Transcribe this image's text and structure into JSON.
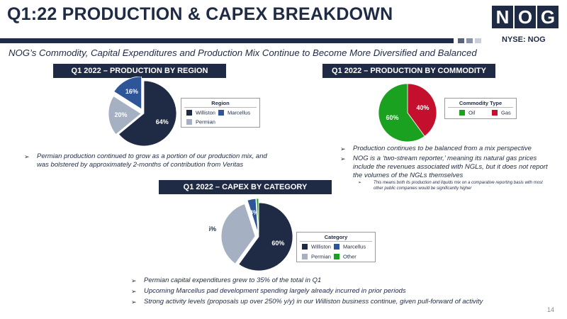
{
  "title": "Q1:22 PRODUCTION & CAPEX BREAKDOWN",
  "logo_text": "NOG",
  "ticker": "NYSE: NOG",
  "subtitle": "NOG’s Commodity, Capital Expenditures and Production Mix Continue to Become More Diversified and Balanced",
  "page_number": "14",
  "colors": {
    "navy": "#1f2a44",
    "steel": "#2e5597",
    "gray": "#a5b0c3",
    "green": "#1aa11f",
    "red": "#c4102e"
  },
  "region_bullet": "Permian production continued to grow as a portion of our production mix, and was bolstered by approximately 2-months of contribution from Veritas",
  "commodity_bullets": [
    "Production continues to be balanced from a mix perspective",
    "NOG is a ‘two-stream reporter,’ meaning its natural gas prices include the revenues associated with NGLs, but it does not report the volumes of the NGLs themselves"
  ],
  "commodity_subbullet": "This means both its production and liquids mix on a comparative reporting basis with most other public companies would be significantly higher",
  "capex_bullets": [
    "Permian capital expenditures grew to 35% of the total in Q1",
    "Upcoming Marcellus pad development spending largely already incurred in prior periods",
    "Strong activity levels (proposals up over 250% y/y) in our Williston business continue, given pull-forward of activity"
  ],
  "chart_data": [
    {
      "type": "pie",
      "title": "Q1 2022 – PRODUCTION BY REGION",
      "legend_title": "Region",
      "legend_position": "right",
      "categories": [
        "Williston",
        "Marcellus",
        "Permian"
      ],
      "values": [
        64,
        16,
        20
      ],
      "labels": [
        "64%",
        "16%",
        "20%"
      ],
      "colors": [
        "#1f2a44",
        "#2e5597",
        "#a5b0c3"
      ]
    },
    {
      "type": "pie",
      "title": "Q1 2022 – PRODUCTION BY COMMODITY",
      "legend_title": "Commodity Type",
      "legend_position": "right",
      "categories": [
        "Oil",
        "Gas"
      ],
      "values": [
        60,
        40
      ],
      "labels": [
        "60%",
        "40%"
      ],
      "colors": [
        "#1aa11f",
        "#c4102e"
      ]
    },
    {
      "type": "pie",
      "title": "Q1 2022 – CAPEX BY CATEGORY",
      "legend_title": "Category",
      "legend_position": "right",
      "categories": [
        "Williston",
        "Marcellus",
        "Permian",
        "Other"
      ],
      "values": [
        60,
        4,
        35,
        1
      ],
      "labels": [
        "60%",
        "4%",
        "35%",
        "1%"
      ],
      "colors": [
        "#1f2a44",
        "#2e5597",
        "#a5b0c3",
        "#1aa11f"
      ]
    }
  ]
}
